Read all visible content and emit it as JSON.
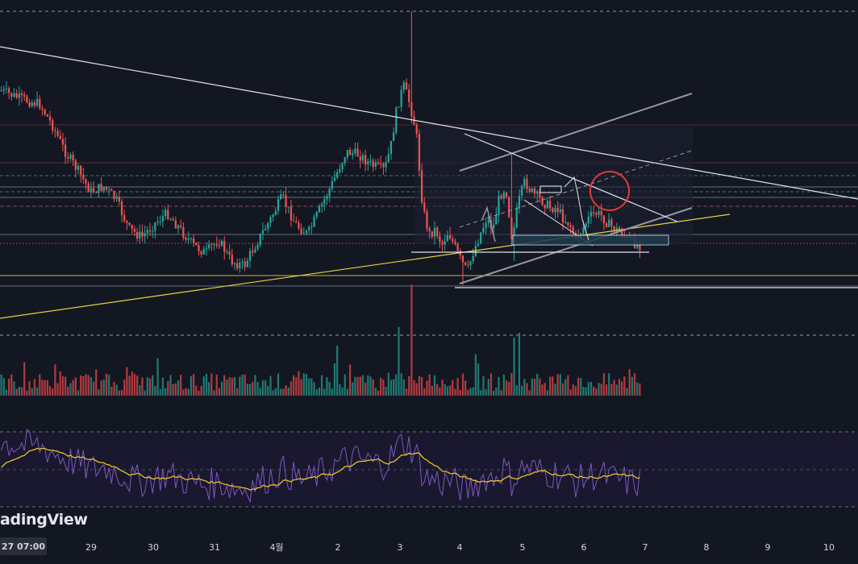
{
  "watermark": "adingView",
  "time_badge": "27  07:00",
  "colors": {
    "background": "#131722",
    "up": "#26a69a",
    "down": "#ef5350",
    "rsi": "#7e57c2",
    "rsi_ma": "#e6c229",
    "trendline": "#e0e3eb",
    "yellow_line": "#e6d33a",
    "red_circle": "#e53935"
  },
  "chart_data": [
    {
      "type": "candlestick",
      "title": "",
      "x_ticks": [
        "29",
        "30",
        "31",
        "4월",
        "2",
        "3",
        "4",
        "5",
        "6",
        "7",
        "8",
        "9",
        "10"
      ],
      "grid": false,
      "close_path_shape": [
        [
          0,
          0.22
        ],
        [
          0.03,
          0.25
        ],
        [
          0.06,
          0.27
        ],
        [
          0.08,
          0.35
        ],
        [
          0.1,
          0.45
        ],
        [
          0.12,
          0.52
        ],
        [
          0.14,
          0.6
        ],
        [
          0.16,
          0.58
        ],
        [
          0.18,
          0.63
        ],
        [
          0.2,
          0.74
        ],
        [
          0.22,
          0.77
        ],
        [
          0.24,
          0.72
        ],
        [
          0.26,
          0.68
        ],
        [
          0.28,
          0.74
        ],
        [
          0.3,
          0.8
        ],
        [
          0.32,
          0.83
        ],
        [
          0.34,
          0.78
        ],
        [
          0.36,
          0.86
        ],
        [
          0.38,
          0.88
        ],
        [
          0.4,
          0.79
        ],
        [
          0.42,
          0.71
        ],
        [
          0.44,
          0.62
        ],
        [
          0.46,
          0.72
        ],
        [
          0.48,
          0.76
        ],
        [
          0.5,
          0.66
        ],
        [
          0.52,
          0.56
        ],
        [
          0.54,
          0.45
        ],
        [
          0.56,
          0.46
        ],
        [
          0.58,
          0.5
        ],
        [
          0.6,
          0.52
        ],
        [
          0.61,
          0.43
        ],
        [
          0.62,
          0.28
        ],
        [
          0.63,
          0.2
        ],
        [
          0.64,
          0.27
        ],
        [
          0.65,
          0.38
        ],
        [
          0.66,
          0.66
        ],
        [
          0.67,
          0.76
        ],
        [
          0.68,
          0.74
        ],
        [
          0.69,
          0.8
        ],
        [
          0.7,
          0.75
        ],
        [
          0.72,
          0.86
        ],
        [
          0.73,
          0.9
        ],
        [
          0.74,
          0.82
        ],
        [
          0.75,
          0.76
        ],
        [
          0.76,
          0.7
        ],
        [
          0.77,
          0.74
        ],
        [
          0.78,
          0.62
        ],
        [
          0.79,
          0.58
        ],
        [
          0.8,
          0.78
        ],
        [
          0.81,
          0.64
        ],
        [
          0.82,
          0.56
        ],
        [
          0.83,
          0.6
        ],
        [
          0.84,
          0.62
        ],
        [
          0.85,
          0.64
        ],
        [
          0.86,
          0.66
        ],
        [
          0.87,
          0.66
        ],
        [
          0.88,
          0.7
        ],
        [
          0.89,
          0.72
        ],
        [
          0.9,
          0.78
        ],
        [
          0.91,
          0.74
        ],
        [
          0.92,
          0.7
        ],
        [
          0.93,
          0.68
        ],
        [
          0.94,
          0.69
        ],
        [
          0.95,
          0.72
        ],
        [
          0.96,
          0.74
        ],
        [
          0.97,
          0.75
        ],
        [
          0.98,
          0.78
        ],
        [
          1.0,
          0.8
        ]
      ]
    },
    {
      "type": "bar",
      "title": "",
      "categories": [],
      "series": [
        {
          "values": []
        }
      ]
    },
    {
      "type": "line",
      "title": "",
      "series": [
        {
          "values": []
        },
        {
          "values": []
        }
      ]
    }
  ]
}
